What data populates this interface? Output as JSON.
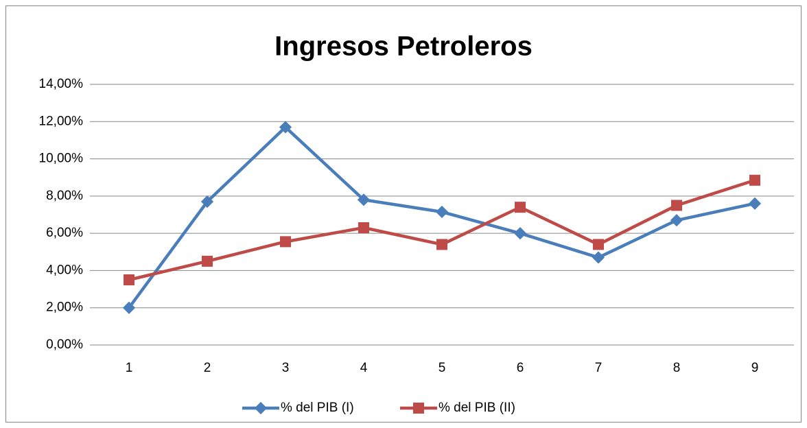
{
  "chart_data": {
    "type": "line",
    "title": "Ingresos Petroleros",
    "categories": [
      "1",
      "2",
      "3",
      "4",
      "5",
      "6",
      "7",
      "8",
      "9"
    ],
    "series": [
      {
        "name": "% del PIB (I)",
        "color": "#4a7ebb",
        "marker": "diamond",
        "values": [
          2.0,
          7.7,
          11.7,
          7.8,
          7.15,
          6.0,
          4.7,
          6.7,
          7.6
        ]
      },
      {
        "name": "% del PIB (II)",
        "color": "#be4b48",
        "marker": "square",
        "values": [
          3.5,
          4.5,
          5.55,
          6.3,
          5.4,
          7.4,
          5.4,
          7.5,
          8.85
        ]
      }
    ],
    "ylim": [
      0,
      14
    ],
    "yticks": [
      {
        "value": 0,
        "label": "0,00%"
      },
      {
        "value": 2,
        "label": "2,00%"
      },
      {
        "value": 4,
        "label": "4,00%"
      },
      {
        "value": 6,
        "label": "6,00%"
      },
      {
        "value": 8,
        "label": "8,00%"
      },
      {
        "value": 10,
        "label": "10,00%"
      },
      {
        "value": 12,
        "label": "12,00%"
      },
      {
        "value": 14,
        "label": "14,00%"
      }
    ],
    "grid": true,
    "legend": "bottom"
  }
}
